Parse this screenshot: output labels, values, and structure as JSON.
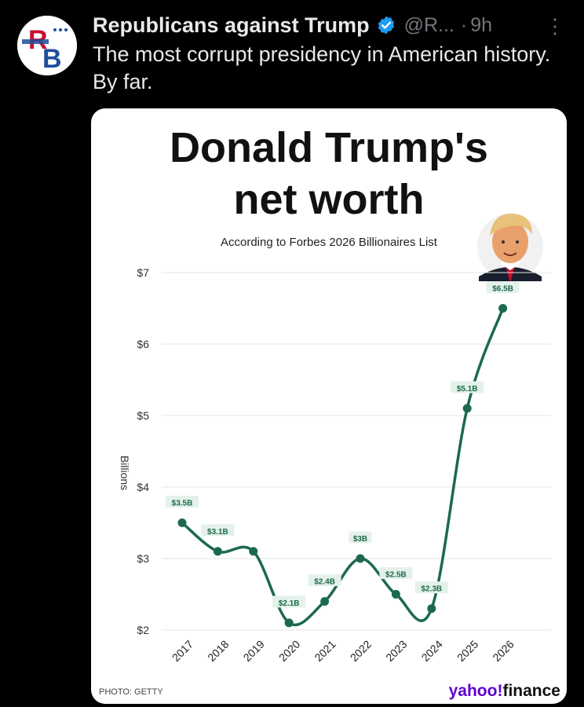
{
  "tweet": {
    "author_name": "Republicans against Trump",
    "handle": "@R...",
    "time_sep": "·",
    "time": "9h",
    "more_label": "⋮",
    "text": "The most corrupt presidency in American history. By far."
  },
  "avatar": {
    "initials_top": "R",
    "initials_bottom": "B"
  },
  "card": {
    "title_line1": "Donald Trump's",
    "title_line2": "net worth",
    "subtitle": "According to Forbes 2026 Billionaires List",
    "photo_credit": "PHOTO: GETTY",
    "brand_yahoo": "yahoo",
    "brand_excl": "!",
    "brand_finance": "finance"
  },
  "colors": {
    "line": "#1c6a4b",
    "label_bg": "#e4f1ea",
    "brand": "#5f01d1",
    "verified": "#1d9bf0"
  },
  "chart_data": {
    "type": "line",
    "title": "Donald Trump's net worth",
    "subtitle": "According to Forbes 2026 Billionaires List",
    "ylabel": "Billions",
    "xlabel": "",
    "x": [
      "2017",
      "2018",
      "2019",
      "2020",
      "2021",
      "2022",
      "2023",
      "2024",
      "2025",
      "2026"
    ],
    "values": [
      3.5,
      3.1,
      3.1,
      2.1,
      2.4,
      3.0,
      2.5,
      2.3,
      5.1,
      6.5
    ],
    "data_labels": [
      "$3.5B",
      "$3.1B",
      "",
      "$2.1B",
      "$2.4B",
      "$3B",
      "$2.5B",
      "$2.3B",
      "$5.1B",
      "$6.5B"
    ],
    "ylim": [
      2,
      7
    ],
    "yticks": [
      2,
      3,
      4,
      5,
      6,
      7
    ],
    "ytick_labels": [
      "$2",
      "$3",
      "$4",
      "$5",
      "$6",
      "$7"
    ],
    "grid": true,
    "legend": "none"
  }
}
